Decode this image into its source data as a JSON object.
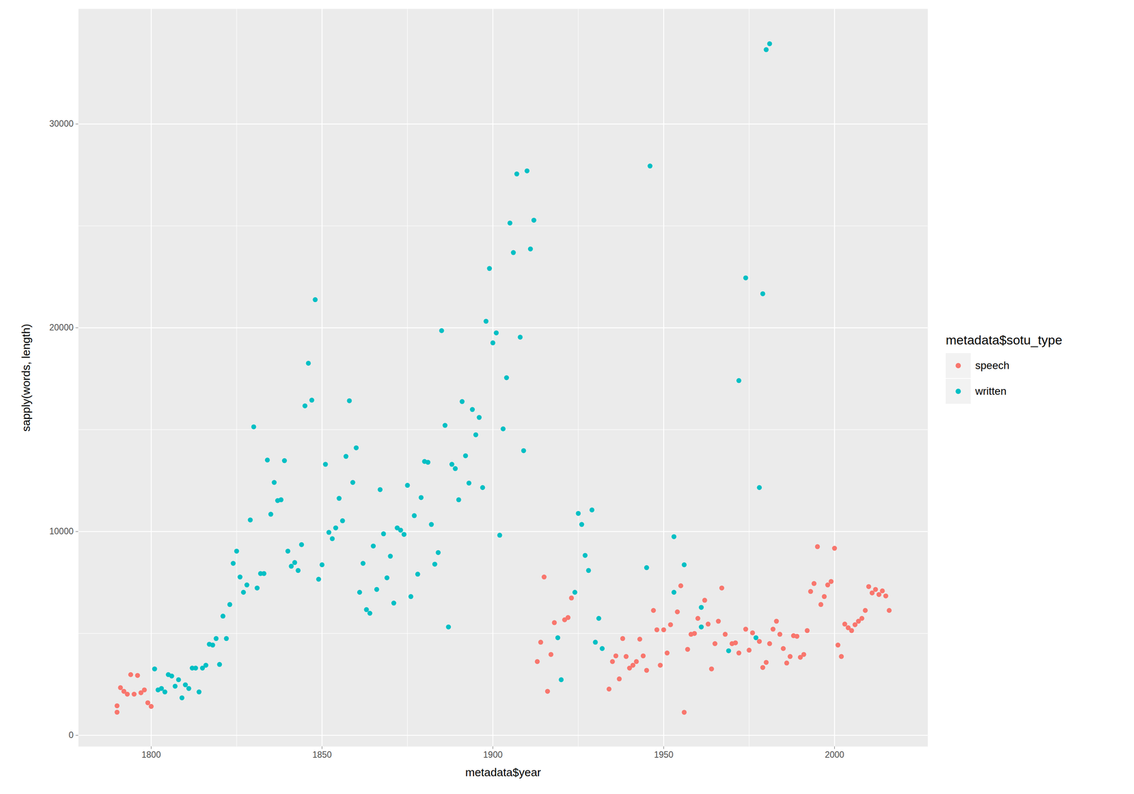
{
  "chart_data": {
    "type": "scatter",
    "x_label": "metadata$year",
    "y_label": "sapply(words, length)",
    "legend_title": "metadata$sotu_type",
    "legend": "right",
    "grid": true,
    "xlim": [
      1778.7,
      2027.3
    ],
    "ylim": [
      -550,
      35650
    ],
    "xticks": [
      1800,
      1850,
      1900,
      1950,
      2000
    ],
    "yticks": [
      0,
      10000,
      20000,
      30000
    ],
    "series": [
      {
        "name": "speech",
        "color": "#F8766D",
        "x": [
          1790,
          1790,
          1791,
          1792,
          1793,
          1794,
          1795,
          1796,
          1797,
          1798,
          1799,
          1800,
          1913,
          1914,
          1915,
          1916,
          1917,
          1918,
          1921,
          1922,
          1923,
          1934,
          1935,
          1936,
          1937,
          1938,
          1939,
          1940,
          1941,
          1942,
          1943,
          1944,
          1945,
          1947,
          1948,
          1949,
          1950,
          1951,
          1952,
          1954,
          1955,
          1956,
          1957,
          1958,
          1959,
          1960,
          1962,
          1963,
          1964,
          1965,
          1966,
          1967,
          1968,
          1970,
          1971,
          1972,
          1974,
          1975,
          1976,
          1978,
          1979,
          1980,
          1981,
          1982,
          1983,
          1984,
          1985,
          1986,
          1987,
          1988,
          1989,
          1990,
          1991,
          1992,
          1993,
          1994,
          1995,
          1996,
          1997,
          1998,
          1999,
          2000,
          2001,
          2002,
          2003,
          2004,
          2005,
          2006,
          2007,
          2008,
          2009,
          2010,
          2011,
          2012,
          2013,
          2014,
          2015,
          2016
        ],
        "values": [
          1135,
          1450,
          2340,
          2160,
          2020,
          2980,
          2020,
          2940,
          2090,
          2230,
          1600,
          1420,
          3620,
          4570,
          7770,
          2160,
          3970,
          5530,
          5670,
          5780,
          6740,
          2270,
          3620,
          3900,
          2770,
          4750,
          3870,
          3300,
          3440,
          3620,
          4720,
          3900,
          3190,
          6130,
          5180,
          3440,
          5180,
          4040,
          5430,
          6060,
          7340,
          1130,
          4220,
          4960,
          5000,
          5740,
          6630,
          5460,
          3260,
          4500,
          5600,
          7230,
          4960,
          4500,
          4540,
          4040,
          5210,
          4180,
          5030,
          4610,
          3330,
          3580,
          4500,
          5210,
          5600,
          4960,
          4260,
          3550,
          3870,
          4890,
          4860,
          3830,
          3970,
          5140,
          7060,
          7450,
          9260,
          6420,
          6810,
          7380,
          7550,
          9180,
          4430,
          3870,
          5460,
          5280,
          5140,
          5430,
          5600,
          5740,
          6130,
          7300,
          6990,
          7160,
          6910,
          7090,
          6840,
          6130
        ]
      },
      {
        "name": "written",
        "color": "#00BFC4",
        "x": [
          1801,
          1802,
          1803,
          1804,
          1805,
          1806,
          1807,
          1808,
          1809,
          1810,
          1811,
          1812,
          1813,
          1814,
          1815,
          1816,
          1817,
          1818,
          1819,
          1820,
          1821,
          1822,
          1823,
          1824,
          1825,
          1826,
          1827,
          1828,
          1829,
          1830,
          1831,
          1832,
          1833,
          1834,
          1835,
          1836,
          1837,
          1838,
          1839,
          1840,
          1841,
          1842,
          1843,
          1844,
          1845,
          1846,
          1847,
          1848,
          1849,
          1850,
          1851,
          1852,
          1853,
          1854,
          1855,
          1856,
          1857,
          1858,
          1859,
          1860,
          1861,
          1862,
          1863,
          1864,
          1865,
          1866,
          1867,
          1868,
          1869,
          1870,
          1871,
          1872,
          1873,
          1874,
          1875,
          1876,
          1877,
          1878,
          1879,
          1880,
          1881,
          1882,
          1883,
          1884,
          1885,
          1886,
          1887,
          1888,
          1889,
          1890,
          1891,
          1892,
          1893,
          1894,
          1895,
          1896,
          1897,
          1898,
          1899,
          1900,
          1901,
          1902,
          1903,
          1904,
          1905,
          1906,
          1907,
          1908,
          1909,
          1910,
          1911,
          1912,
          1919,
          1920,
          1924,
          1925,
          1926,
          1927,
          1928,
          1929,
          1930,
          1931,
          1932,
          1945,
          1946,
          1953,
          1953,
          1956,
          1961,
          1961,
          1969,
          1972,
          1974,
          1977,
          1978,
          1979,
          1980,
          1981
        ],
        "values": [
          3260,
          2230,
          2300,
          2130,
          2980,
          2910,
          2410,
          2730,
          1840,
          2480,
          2300,
          3300,
          3300,
          2130,
          3300,
          3440,
          4470,
          4430,
          4750,
          3480,
          5850,
          4750,
          6420,
          8440,
          9040,
          7770,
          7020,
          7380,
          10570,
          15140,
          7230,
          7940,
          7940,
          13510,
          10850,
          12410,
          11520,
          11560,
          13480,
          9040,
          8300,
          8480,
          8090,
          9360,
          16170,
          18260,
          16450,
          21380,
          7660,
          8370,
          13300,
          9960,
          9650,
          10180,
          11630,
          10530,
          13690,
          16420,
          12410,
          14110,
          7020,
          8440,
          6170,
          5990,
          9290,
          7160,
          12060,
          9890,
          7730,
          8790,
          6490,
          10180,
          10070,
          9860,
          12270,
          6810,
          10780,
          7910,
          11670,
          13440,
          13400,
          10350,
          8400,
          8970,
          19860,
          15210,
          5320,
          13300,
          13090,
          11560,
          16380,
          13720,
          12380,
          15990,
          14750,
          15600,
          12160,
          20320,
          22910,
          19260,
          19750,
          9820,
          15040,
          17550,
          25140,
          23690,
          27550,
          19540,
          13970,
          27700,
          23870,
          25280,
          4790,
          2730,
          7020,
          10890,
          10350,
          8830,
          8090,
          11060,
          4570,
          5740,
          4260,
          8230,
          27940,
          9750,
          7020,
          8370,
          6280,
          5320,
          4150,
          17410,
          22450,
          4790,
          12160,
          21670,
          33650,
          33940
        ]
      }
    ]
  }
}
